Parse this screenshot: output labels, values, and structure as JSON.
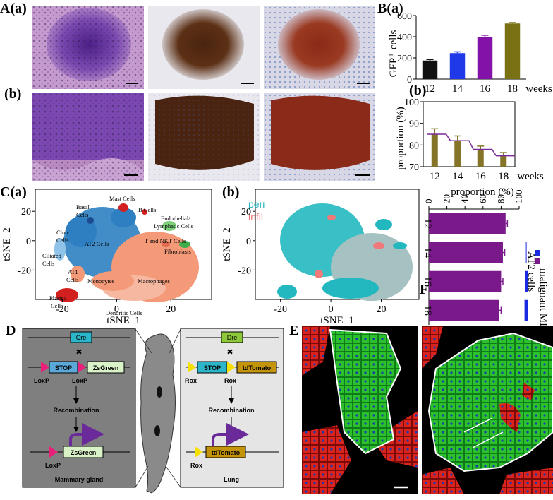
{
  "labels": {
    "A": "A(a)",
    "Ab": "(b)",
    "B": "B(a)",
    "Bb": "(b)",
    "C": "C(a)",
    "Cb": "(b)",
    "D": "D",
    "E": "E",
    "F": "F"
  },
  "colors": {
    "he_bg": "#b98ac2",
    "he_dark": "#5a2a8a",
    "ihc_brown": "#4a2410",
    "ihc_bg": "#e9e8ee",
    "overlay_red": "#8a2a18",
    "overlay_blue": "#4a6ab0",
    "bar_12": "#111111",
    "bar_14": "#1f38e8",
    "bar_16": "#8312a8",
    "bar_18": "#7a7014",
    "prop_bar": "#837428",
    "prop_line": "#7a2a9a",
    "tsne_blue": "#2d7fc1",
    "tsne_orange": "#f49a78",
    "tsne_red": "#d22020",
    "tsne_green": "#3fae4a",
    "peri": "#23b8c0",
    "infil": "#f07a7a",
    "F_malignant": "#7a1a8a",
    "F_at2": "#1a2ae0",
    "D_left_bg": "#7f7f7f",
    "D_right_bg": "#e5e5e5",
    "cre": "#2cb5c8",
    "stop": "#5aa9d8",
    "zsgreen_box": "#d9f2c8",
    "loxp": "#e8207a",
    "dre": "#8cc83a",
    "rox": "#f5e000",
    "tdtomato": "#c4940a",
    "arrow_purple": "#6a2a9a",
    "E_green": "#2cc02c",
    "E_red": "#d8241c"
  },
  "chart_data": [
    {
      "type": "bar",
      "panel": "B(a)",
      "categories": [
        "12",
        "14",
        "16",
        "18"
      ],
      "values": [
        175,
        245,
        400,
        525
      ],
      "errors": [
        10,
        12,
        14,
        8
      ],
      "ylabel": "GFP⁺ cells",
      "xlabel_suffix": "weeks",
      "ylim": [
        0,
        600
      ],
      "yticks": [
        "0",
        "200",
        "400",
        "600"
      ]
    },
    {
      "type": "bar",
      "panel": "B(b)",
      "categories": [
        "12",
        "14",
        "16",
        "18"
      ],
      "values": [
        85,
        82,
        78,
        75
      ],
      "errors": [
        2.5,
        2.2,
        1.5,
        1.5
      ],
      "step_line": [
        85,
        82,
        78,
        75
      ],
      "ylabel": "proportion (%)",
      "xlabel_suffix": "weeks",
      "ylim": [
        70,
        100
      ],
      "yticks": [
        "70",
        "80",
        "90",
        "100"
      ]
    },
    {
      "type": "bar",
      "panel": "F",
      "orientation": "horizontal",
      "categories": [
        "12",
        "14",
        "16",
        "18"
      ],
      "series": [
        {
          "name": "malignant MDC cells",
          "values": [
            85,
            82,
            80,
            78
          ]
        },
        {
          "name": "AT2 cells",
          "values": [
            0,
            1,
            5,
            6
          ]
        }
      ],
      "xlabel": "proportion (%)",
      "xlim": [
        0,
        100
      ],
      "xticks": [
        "0",
        "20",
        "40",
        "60",
        "80",
        "100"
      ],
      "category_suffix": "weeks"
    },
    {
      "type": "scatter",
      "panel": "C(a)",
      "xlabel": "tSNE_1",
      "ylabel": "tSNE_2",
      "xticks": [
        "-20",
        "0",
        "20"
      ],
      "yticks": [
        "20",
        "0",
        "-20"
      ],
      "annotations": [
        "Mast Cells",
        "Basal",
        "Cells",
        "B Cells",
        "Endothelial/",
        "Lymphatic Cells",
        "Club",
        "Cells",
        "AT2 Cells",
        "T and NKT Cells",
        "Fibroblasts",
        "Ciliated",
        "Cells",
        "AT1",
        "Cells",
        "Monocytes",
        "Macrophages",
        "Plasma",
        "Cells",
        "Dendritic Cells"
      ]
    },
    {
      "type": "scatter",
      "panel": "C(b)",
      "xlabel": "tSNE_1",
      "ylabel": "tSNE_2",
      "xticks": [
        "-20",
        "0",
        "20"
      ],
      "yticks": [
        "20",
        "0",
        "-20"
      ],
      "legend": [
        "peri",
        "infil"
      ]
    }
  ],
  "diagram_D": {
    "left": {
      "cre": "Cre",
      "stop": "STOP",
      "zsgreen": "ZsGreen",
      "loxp1": "LoxP",
      "loxp2": "LoxP",
      "recomb": "Recombination",
      "zsgreen2": "ZsGreen",
      "loxp3": "LoxP",
      "tissue": "Mammary gland",
      "x": "✖"
    },
    "right": {
      "dre": "Dre",
      "stop": "STOP",
      "tdtomato": "tdTomato",
      "rox1": "Rox",
      "rox2": "Rox",
      "recomb": "Recombination",
      "tdtomato2": "tdTomato",
      "rox3": "Rox",
      "tissue": "Lung",
      "x": "✖"
    }
  }
}
